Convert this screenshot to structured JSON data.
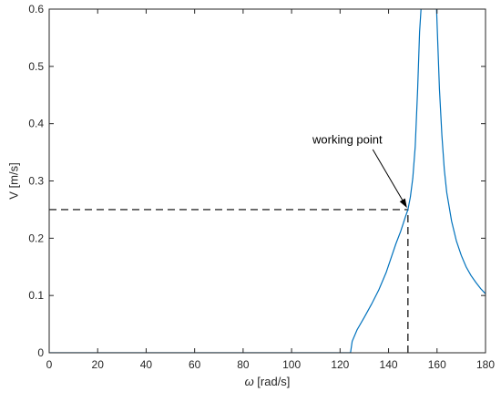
{
  "chart_data": {
    "type": "line",
    "xlabel_symbol": "ω",
    "xlabel_unit": " [rad/s]",
    "ylabel": "V [m/s]",
    "xlim": [
      0,
      180
    ],
    "ylim": [
      0,
      0.6
    ],
    "xticks": [
      0,
      20,
      40,
      60,
      80,
      100,
      120,
      140,
      160,
      180
    ],
    "yticks": [
      0,
      0.1,
      0.2,
      0.3,
      0.4,
      0.5,
      0.6
    ],
    "ytick_labels": [
      "0",
      "0.1",
      "0.2",
      "0.3",
      "0.4",
      "0.5",
      "0.6"
    ],
    "grid": false,
    "series": [
      {
        "color": "#0072BD",
        "x": [
          0,
          124,
          124.3,
          125,
          127,
          130,
          133,
          136,
          139,
          141,
          143,
          145,
          146,
          147,
          148,
          149,
          150,
          151,
          152,
          152.8,
          153.4,
          156,
          159.8,
          160.4,
          161,
          162,
          163,
          164,
          166,
          168,
          170,
          172,
          174,
          176,
          178,
          180
        ],
        "y": [
          0,
          0,
          0,
          0.02,
          0.04,
          0.062,
          0.085,
          0.11,
          0.14,
          0.165,
          0.19,
          0.212,
          0.225,
          0.238,
          0.25,
          0.272,
          0.305,
          0.36,
          0.46,
          0.56,
          0.6,
          null,
          0.6,
          0.53,
          0.46,
          0.38,
          0.32,
          0.28,
          0.23,
          0.195,
          0.17,
          0.15,
          0.135,
          0.123,
          0.112,
          0.103
        ]
      }
    ],
    "reference_lines": {
      "color": "#000000",
      "horizontal": {
        "y": 0.25,
        "x_from": 0,
        "x_to": 148
      },
      "vertical": {
        "x": 148,
        "y_from": 0,
        "y_to": 0.25
      }
    },
    "annotation": {
      "text": "working point",
      "point": {
        "x": 148,
        "y": 0.25
      },
      "text_at": {
        "x": 123,
        "y": 0.365
      },
      "arrow_from": {
        "x": 133.5,
        "y": 0.355
      },
      "arrow_to": {
        "x": 147.6,
        "y": 0.253
      }
    }
  }
}
